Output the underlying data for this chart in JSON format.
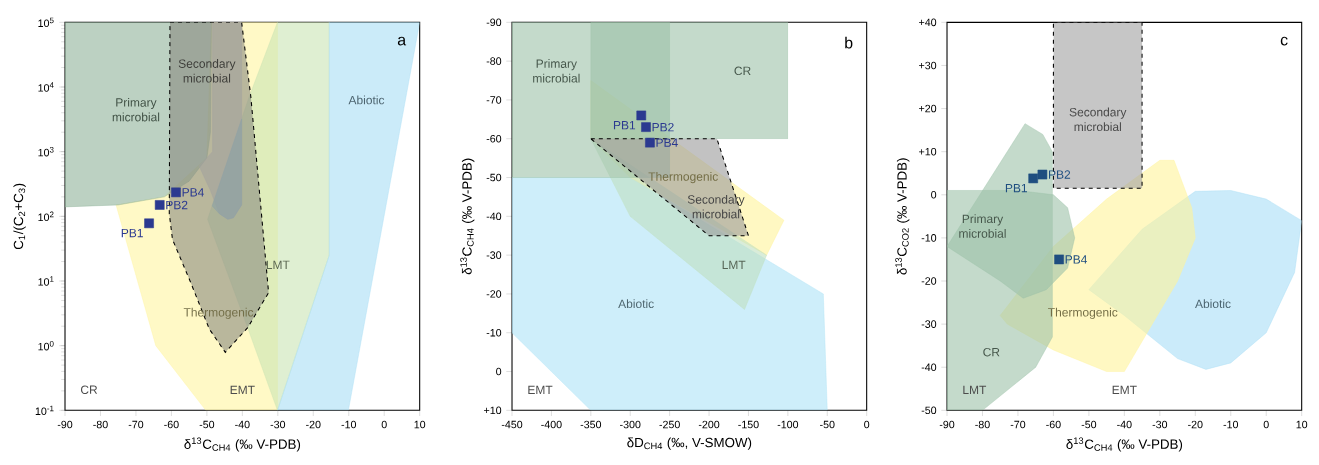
{
  "chart_data": [
    {
      "type": "scatter",
      "xlabel": "δ$^{13}$C$_{CH4}$ (‰ V-PDB)",
      "ylabel": "C$_{1}$/(C$_{2}$+C$_{3}$)",
      "log": "y",
      "xlim": [
        -90,
        10
      ],
      "xticks": [
        -90,
        -80,
        -70,
        -60,
        -50,
        -40,
        -30,
        -20,
        -10,
        0,
        10
      ],
      "ylim": [
        0.1,
        100000
      ],
      "yticks": [
        {
          "value": 0.1,
          "label": "10$^{-1}$"
        },
        {
          "value": 1,
          "label": "10$^{0}$"
        },
        {
          "value": 10,
          "label": "10$^{1}$"
        },
        {
          "value": 100,
          "label": "10$^{2}$"
        },
        {
          "value": 1000,
          "label": "10$^{3}$"
        },
        {
          "value": 10000,
          "label": "10$^{4}$"
        },
        {
          "value": 100000,
          "label": "10$^{5}$"
        }
      ],
      "series": [
        {
          "type": "area",
          "name": "Thermogenic",
          "color": "#fff5a0",
          "x": [
            -75.6,
            -64.4,
            -50.3,
            -30.1,
            -30.1,
            -48.7,
            -50,
            -62
          ],
          "values": [
            150,
            1,
            0.1,
            0.1,
            100000,
            100000,
            800,
            200
          ]
        },
        {
          "type": "area",
          "name": "LMT",
          "color": "#c9e4b4",
          "x": [
            -30.1,
            -15.5,
            -15.5,
            -30.1,
            -38.5,
            -49.8,
            -38.1
          ],
          "values": [
            100000,
            100000,
            25,
            0.1,
            1.9,
            90,
            7000
          ]
        },
        {
          "type": "area",
          "name": "Abiotic",
          "color": "#a9ddf5",
          "x": [
            -15.5,
            10,
            -10.1,
            -30.1,
            -15.5
          ],
          "values": [
            100000,
            100000,
            0.1,
            0.1,
            25
          ]
        },
        {
          "type": "area",
          "name": "Primary microbial",
          "color": "#8fb39a",
          "x": [
            -90,
            -48.7,
            -49,
            -50,
            -55,
            -62,
            -75,
            -90
          ],
          "values": [
            100000,
            100000,
            2000,
            800,
            350,
            200,
            150,
            140
          ]
        },
        {
          "type": "area",
          "color": "#c4c4cc",
          "x": [
            -48.4,
            -40.2,
            -40.2,
            -42.5,
            -44.1,
            -46.5,
            -49,
            -52.2,
            -48.4
          ],
          "values": [
            100000,
            100000,
            150,
            95,
            90,
            110,
            250,
            600,
            1000
          ]
        },
        {
          "type": "area",
          "color": "#8fc3e0",
          "x": [
            -40.2,
            -40.2,
            -42.5,
            -44.1,
            -46.5,
            -48.5
          ],
          "values": [
            3200,
            150,
            95,
            90,
            110,
            145
          ]
        },
        {
          "type": "area",
          "name": "Secondary microbial",
          "color": "#8a8a80",
          "line_style": "dashed",
          "x": [
            -60.4,
            -40.2,
            -37.6,
            -32.6,
            -38.5,
            -44.8,
            -49.3,
            -54.5,
            -59.7,
            -60.6
          ],
          "values": [
            100000,
            100000,
            7000,
            6.6,
            1.9,
            0.79,
            1.8,
            9.3,
            44,
            110
          ]
        },
        {
          "type": "scatter",
          "name": "PB1",
          "marker": "square",
          "color": "#2b3990",
          "x": [
            -66.3
          ],
          "values": [
            78
          ]
        },
        {
          "type": "scatter",
          "name": "PB2",
          "marker": "square",
          "color": "#2b3990",
          "x": [
            -63.3
          ],
          "values": [
            150
          ]
        },
        {
          "type": "scatter",
          "name": "PB4",
          "marker": "square",
          "color": "#2b3990",
          "x": [
            -58.7
          ],
          "values": [
            235
          ]
        }
      ],
      "annotations": [
        "a",
        "CR",
        "EMT"
      ]
    },
    {
      "type": "scatter",
      "xlabel": "δD$_{CH4}$ (‰, V-SMOW)",
      "ylabel": "δ$^{13}$C$_{CH4}$ (‰ V-PDB)",
      "xlim": [
        -450,
        0
      ],
      "xticks": [
        -450,
        -400,
        -350,
        -300,
        -250,
        -200,
        -150,
        -100,
        -50,
        0
      ],
      "ylim": [
        10,
        -90
      ],
      "yticks": [
        -90,
        -80,
        -70,
        -60,
        -50,
        -40,
        -30,
        -20,
        -10,
        0,
        {
          "value": 10,
          "label": "+10"
        }
      ],
      "series": [
        {
          "type": "area",
          "name": "Abiotic",
          "color": "#aee2f6",
          "x": [
            -450,
            -300,
            -55,
            -50,
            -350,
            -450
          ],
          "values": [
            -50,
            -50,
            -20,
            10,
            10,
            -10
          ]
        },
        {
          "type": "area",
          "name": "Thermogenic",
          "color": "#fff39a",
          "x": [
            -350,
            -105,
            -127,
            -300,
            -350
          ],
          "values": [
            -75,
            -39,
            -30,
            -50,
            -60
          ]
        },
        {
          "type": "area",
          "name": "LMT",
          "color": "#bfe0c0",
          "x": [
            -350,
            -300,
            -155,
            -127
          ],
          "values": [
            -60,
            -40,
            -16,
            -30
          ]
        },
        {
          "type": "area",
          "name": "Primary microbial",
          "color": "#9cc2a8",
          "x": [
            -450,
            -250,
            -250,
            -450
          ],
          "values": [
            -90,
            -90,
            -50,
            -50
          ]
        },
        {
          "type": "area",
          "name": "CR",
          "color": "#9cc2a8",
          "x": [
            -350,
            -100,
            -100,
            -350
          ],
          "values": [
            -90,
            -90,
            -60,
            -60
          ]
        },
        {
          "type": "area",
          "name": "Secondary microbial",
          "color": "#9a9a9a",
          "line_style": "dashed",
          "x": [
            -350,
            -190,
            -150,
            -200
          ],
          "values": [
            -60,
            -60,
            -35,
            -35
          ]
        },
        {
          "type": "scatter",
          "name": "PB1",
          "marker": "square",
          "color": "#2b3990",
          "x": [
            -286
          ],
          "values": [
            -66
          ]
        },
        {
          "type": "scatter",
          "name": "PB2",
          "marker": "square",
          "color": "#2b3990",
          "x": [
            -280
          ],
          "values": [
            -63
          ]
        },
        {
          "type": "scatter",
          "name": "PB4",
          "marker": "square",
          "color": "#2b3990",
          "x": [
            -275
          ],
          "values": [
            -59
          ]
        }
      ],
      "annotations": [
        "b",
        "EMT"
      ]
    },
    {
      "type": "scatter",
      "xlabel": "δ$^{13}$C$_{CH4}$ (‰ V-PDB)",
      "ylabel": "δ$^{13}$C$_{CO2}$ (‰ V-PDB)",
      "xlim": [
        -90,
        10
      ],
      "xticks": [
        -90,
        -80,
        -70,
        -60,
        -50,
        -40,
        -30,
        -20,
        -10,
        0,
        10
      ],
      "ylim": [
        -50,
        40
      ],
      "yticks": [
        -50,
        -40,
        -30,
        -20,
        -10,
        0,
        {
          "value": 10,
          "label": "+10"
        },
        {
          "value": 20,
          "label": "+20"
        },
        {
          "value": 30,
          "label": "+30"
        },
        {
          "value": 40,
          "label": "+40"
        }
      ],
      "series": [
        {
          "type": "area",
          "name": "Abiotic",
          "color": "#a8def6",
          "x": [
            -50,
            -35,
            -20,
            -10,
            0,
            10,
            8,
            0,
            -10,
            -17,
            -25,
            -40
          ],
          "values": [
            -22,
            -8,
            0.8,
            1,
            -1,
            -6,
            -18,
            -32,
            -39,
            -40.5,
            -38,
            -28
          ]
        },
        {
          "type": "area",
          "name": "Thermogenic",
          "color": "#fff39a",
          "x": [
            -75,
            -60,
            -45,
            -30,
            -26,
            -21,
            -20,
            -25,
            -40,
            -45,
            -60,
            -73
          ],
          "values": [
            -28,
            -12,
            -1,
            8,
            8,
            -3,
            -10,
            -20,
            -41,
            -41,
            -36,
            -30
          ]
        },
        {
          "type": "area",
          "name": "CR",
          "color": "#9cc2a8",
          "x": [
            -90,
            -68,
            -63,
            -60.3,
            -60.3,
            -65,
            -80,
            -90
          ],
          "values": [
            -12,
            16.5,
            14,
            10,
            -33,
            -40,
            -50,
            -50
          ]
        },
        {
          "type": "area",
          "name": "Primary microbial",
          "color": "#9cc2a8",
          "x": [
            -90,
            -70,
            -60,
            -56,
            -54,
            -56,
            -62,
            -68.5,
            -75,
            -90
          ],
          "values": [
            1,
            1,
            0,
            -3,
            -10,
            -17,
            -22,
            -24,
            -20,
            -12
          ]
        },
        {
          "type": "area",
          "name": "Secondary microbial",
          "color": "#a0a0a0",
          "line_style": "dashed",
          "x": [
            -60,
            -35,
            -35,
            -60
          ],
          "values": [
            40,
            40,
            1.5,
            1.5
          ]
        },
        {
          "type": "scatter",
          "name": "PB1",
          "marker": "square",
          "color": "#1f4e80",
          "x": [
            -65.7
          ],
          "values": [
            3.8
          ]
        },
        {
          "type": "scatter",
          "name": "PB2",
          "marker": "square",
          "color": "#1f4e80",
          "x": [
            -63.1
          ],
          "values": [
            4.7
          ]
        },
        {
          "type": "scatter",
          "name": "PB4",
          "marker": "square",
          "color": "#1f4e80",
          "x": [
            -58.4
          ],
          "values": [
            -15
          ]
        }
      ],
      "annotations": [
        "c",
        "LMT",
        "EMT"
      ]
    }
  ]
}
